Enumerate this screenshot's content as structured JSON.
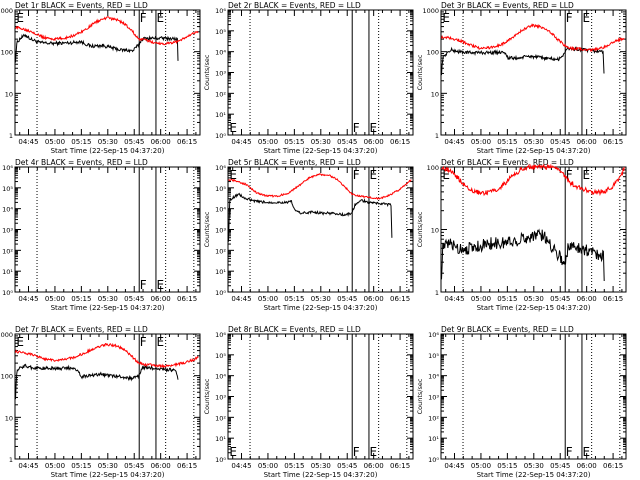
{
  "colors": {
    "events": "#000000",
    "lld": "#ff0000",
    "axis": "#000000",
    "background": "#ffffff"
  },
  "shared": {
    "xlabel": "Start Time (22-Sep-15 04:37:20)",
    "ylabel": "Counts/sec",
    "x_ticks": [
      "04:45",
      "05:00",
      "05:15",
      "05:30",
      "05:45",
      "06:00",
      "06:15"
    ],
    "x_tick_minutes": [
      7.67,
      22.67,
      37.67,
      52.67,
      67.67,
      82.67,
      97.67
    ],
    "xlim_minutes": [
      0,
      105
    ],
    "markers": [
      {
        "label": "E",
        "minute": 0.5
      },
      {
        "label": "F",
        "minute": 70.5
      },
      {
        "label": "E",
        "minute": 80.0
      }
    ],
    "dotted_minutes": [
      12.5,
      85.5,
      101.5
    ],
    "solid_minutes": [
      70.5,
      80.0
    ]
  },
  "chart_data": [
    {
      "type": "line",
      "title": "Det 1r BLACK = Events, RED = LLD",
      "y_scale": "log",
      "ylim": [
        1,
        1000
      ],
      "y_ticks": [
        "1",
        "10",
        "100",
        "1000"
      ],
      "y_tick_values": [
        1,
        10,
        100,
        1000
      ],
      "y_tick_style": "plain",
      "marker_labels_shown": [
        1,
        1,
        1
      ],
      "marker_label_pos": "top",
      "series": [
        {
          "name": "Events",
          "color": "#000000",
          "noise": 0.04,
          "x": [
            0.3,
            1,
            3,
            6,
            9,
            14,
            20,
            27,
            33,
            37,
            43,
            50,
            56,
            60,
            64,
            67,
            70.3,
            72,
            75,
            79,
            84,
            90,
            92.2,
            92.5
          ],
          "y": [
            60,
            160,
            210,
            250,
            200,
            165,
            158,
            160,
            165,
            175,
            135,
            140,
            120,
            110,
            108,
            105,
            150,
            200,
            210,
            210,
            210,
            205,
            200,
            60
          ]
        },
        {
          "name": "LLD",
          "color": "#ff0000",
          "noise": 0.03,
          "x": [
            0.3,
            4,
            10,
            16,
            22,
            28,
            34,
            40,
            46,
            52,
            58,
            62,
            66,
            70.3,
            74,
            80,
            86,
            92,
            97,
            102,
            104
          ],
          "y": [
            380,
            360,
            300,
            220,
            200,
            210,
            250,
            340,
            520,
            650,
            580,
            470,
            330,
            200,
            190,
            160,
            155,
            175,
            220,
            280,
            300
          ]
        }
      ]
    },
    {
      "type": "line",
      "title": "Det 2r BLACK = Events, RED = LLD",
      "y_scale": "log",
      "ylim": [
        1,
        1000000
      ],
      "y_ticks": [
        "10⁰",
        "10¹",
        "10²",
        "10³",
        "10⁴",
        "10⁵",
        "10⁶"
      ],
      "y_tick_values": [
        1,
        10,
        100,
        1000,
        10000,
        100000,
        1000000
      ],
      "y_tick_style": "sci",
      "marker_labels_shown": [
        1,
        1,
        1
      ],
      "marker_label_pos": "bottom",
      "series": []
    },
    {
      "type": "line",
      "title": "Det 3r BLACK = Events, RED = LLD",
      "y_scale": "log",
      "ylim": [
        1,
        1000
      ],
      "y_ticks": [
        "1",
        "10",
        "100",
        "1000"
      ],
      "y_tick_values": [
        1,
        10,
        100,
        1000
      ],
      "y_tick_style": "plain",
      "marker_labels_shown": [
        1,
        1,
        1
      ],
      "marker_label_pos": "top",
      "series": [
        {
          "name": "Events",
          "color": "#000000",
          "noise": 0.04,
          "x": [
            0.3,
            1,
            3,
            6,
            10,
            15,
            20,
            25,
            30,
            36,
            38,
            44,
            50,
            56,
            62,
            67,
            70.3,
            72,
            76,
            80,
            86,
            92,
            92.5
          ],
          "y": [
            30,
            70,
            90,
            110,
            100,
            95,
            95,
            95,
            95,
            100,
            70,
            70,
            78,
            72,
            68,
            65,
            95,
            120,
            115,
            110,
            105,
            100,
            30
          ]
        },
        {
          "name": "LLD",
          "color": "#ff0000",
          "noise": 0.03,
          "x": [
            0.3,
            4,
            10,
            16,
            22,
            28,
            34,
            40,
            46,
            52,
            58,
            62,
            66,
            70.3,
            74,
            80,
            86,
            92,
            97,
            102,
            104
          ],
          "y": [
            220,
            220,
            190,
            150,
            120,
            125,
            145,
            210,
            330,
            430,
            380,
            300,
            200,
            140,
            120,
            115,
            110,
            125,
            160,
            200,
            210
          ]
        }
      ]
    },
    {
      "type": "line",
      "title": "Det 4r BLACK = Events, RED = LLD",
      "y_scale": "log",
      "ylim": [
        1,
        1000000
      ],
      "y_ticks": [
        "10⁰",
        "10¹",
        "10²",
        "10³",
        "10⁴",
        "10⁵",
        "10⁶"
      ],
      "y_tick_values": [
        1,
        10,
        100,
        1000,
        10000,
        100000,
        1000000
      ],
      "y_tick_style": "sci",
      "marker_labels_shown": [
        0,
        1,
        1
      ],
      "marker_label_pos": "bottom",
      "series": []
    },
    {
      "type": "line",
      "title": "Det 5r BLACK = Events, RED = LLD",
      "y_scale": "log",
      "ylim": [
        1,
        1000000
      ],
      "y_ticks": [
        "10⁰",
        "10¹",
        "10²",
        "10³",
        "10⁴",
        "10⁵",
        "10⁶"
      ],
      "y_tick_values": [
        1,
        10,
        100,
        1000,
        10000,
        100000,
        1000000
      ],
      "y_tick_style": "sci",
      "marker_labels_shown": [
        1,
        1,
        1
      ],
      "marker_label_pos": "top",
      "series": [
        {
          "name": "Events",
          "color": "#000000",
          "noise": 0.06,
          "x": [
            0.3,
            1,
            3,
            6,
            10,
            16,
            22,
            28,
            34,
            36,
            38,
            42,
            48,
            54,
            60,
            66,
            70.3,
            72,
            76,
            80,
            86,
            91,
            92.5,
            93
          ],
          "y": [
            300,
            25000,
            35000,
            50000,
            30000,
            22000,
            20000,
            20000,
            20000,
            22000,
            8000,
            6000,
            7000,
            6000,
            6000,
            5000,
            6000,
            15000,
            25000,
            20000,
            18000,
            16000,
            15000,
            400
          ]
        },
        {
          "name": "LLD",
          "color": "#ff0000",
          "noise": 0.04,
          "x": [
            0.3,
            4,
            10,
            16,
            22,
            28,
            34,
            40,
            46,
            52,
            58,
            62,
            66,
            70.3,
            74,
            80,
            86,
            92,
            97,
            102,
            104
          ],
          "y": [
            250000,
            220000,
            150000,
            60000,
            40000,
            40000,
            55000,
            120000,
            300000,
            450000,
            380000,
            250000,
            120000,
            50000,
            40000,
            35000,
            30000,
            45000,
            80000,
            180000,
            250000
          ]
        }
      ]
    },
    {
      "type": "line",
      "title": "Det 6r BLACK = Events, RED = LLD",
      "y_scale": "log",
      "ylim": [
        1,
        100
      ],
      "y_ticks": [
        "1",
        "10",
        "100"
      ],
      "y_tick_values": [
        1,
        10,
        100
      ],
      "y_tick_style": "plain",
      "marker_labels_shown": [
        1,
        1,
        1
      ],
      "marker_label_pos": "top",
      "series": [
        {
          "name": "Events",
          "color": "#000000",
          "noise": 0.1,
          "x": [
            0.3,
            1,
            5,
            10,
            16,
            22,
            28,
            34,
            40,
            46,
            52,
            56,
            60,
            64,
            68,
            70.3,
            72,
            76,
            80,
            84,
            90,
            92.2,
            92.6
          ],
          "y": [
            2,
            5,
            6,
            5,
            5,
            5.5,
            6,
            6,
            6.5,
            7,
            8,
            8.5,
            7,
            5,
            3.5,
            2.8,
            5,
            5.5,
            5,
            4.5,
            4,
            3.8,
            1.5
          ]
        },
        {
          "name": "LLD",
          "color": "#ff0000",
          "noise": 0.04,
          "x": [
            0.3,
            4,
            10,
            16,
            22,
            28,
            34,
            40,
            46,
            52,
            58,
            62,
            66,
            70.3,
            74,
            80,
            86,
            92,
            97,
            102,
            104
          ],
          "y": [
            100,
            90,
            65,
            45,
            38,
            40,
            48,
            70,
            95,
            100,
            100,
            100,
            95,
            70,
            55,
            45,
            40,
            40,
            48,
            70,
            100
          ]
        }
      ]
    },
    {
      "type": "line",
      "title": "Det 7r BLACK = Events, RED = LLD",
      "y_scale": "log",
      "ylim": [
        1,
        1000
      ],
      "y_ticks": [
        "1",
        "10",
        "100",
        "1000"
      ],
      "y_tick_values": [
        1,
        10,
        100,
        1000
      ],
      "y_tick_style": "plain",
      "marker_labels_shown": [
        1,
        1,
        1
      ],
      "marker_label_pos": "top",
      "series": [
        {
          "name": "Events",
          "color": "#000000",
          "noise": 0.04,
          "x": [
            0.3,
            1,
            3,
            6,
            10,
            16,
            22,
            28,
            34,
            38,
            42,
            48,
            54,
            60,
            66,
            70.3,
            72,
            76,
            80,
            86,
            91,
            92.5
          ],
          "y": [
            30,
            120,
            160,
            170,
            155,
            150,
            150,
            150,
            155,
            95,
            100,
            110,
            100,
            95,
            85,
            100,
            150,
            160,
            145,
            140,
            135,
            80
          ]
        },
        {
          "name": "LLD",
          "color": "#ff0000",
          "noise": 0.03,
          "x": [
            0.3,
            4,
            10,
            16,
            22,
            28,
            34,
            40,
            46,
            52,
            58,
            62,
            66,
            70.3,
            74,
            80,
            86,
            92,
            97,
            102,
            104
          ],
          "y": [
            380,
            360,
            320,
            260,
            230,
            240,
            280,
            360,
            480,
            560,
            520,
            420,
            300,
            200,
            185,
            175,
            170,
            185,
            210,
            250,
            270
          ]
        }
      ]
    },
    {
      "type": "line",
      "title": "Det 8r BLACK = Events, RED = LLD",
      "y_scale": "log",
      "ylim": [
        1,
        1000000
      ],
      "y_ticks": [
        "10⁰",
        "10¹",
        "10²",
        "10³",
        "10⁴",
        "10⁵",
        "10⁶"
      ],
      "y_tick_values": [
        1,
        10,
        100,
        1000,
        10000,
        100000,
        1000000
      ],
      "y_tick_style": "sci",
      "marker_labels_shown": [
        1,
        1,
        1
      ],
      "marker_label_pos": "bottom",
      "series": []
    },
    {
      "type": "line",
      "title": "Det 9r BLACK = Events, RED = LLD",
      "y_scale": "log",
      "ylim": [
        1,
        1000000
      ],
      "y_ticks": [
        "10⁰",
        "10¹",
        "10²",
        "10³",
        "10⁴",
        "10⁵",
        "10⁶"
      ],
      "y_tick_values": [
        1,
        10,
        100,
        1000,
        10000,
        100000,
        1000000
      ],
      "y_tick_style": "sci",
      "marker_labels_shown": [
        0,
        1,
        1
      ],
      "marker_label_pos": "bottom",
      "series": []
    }
  ]
}
